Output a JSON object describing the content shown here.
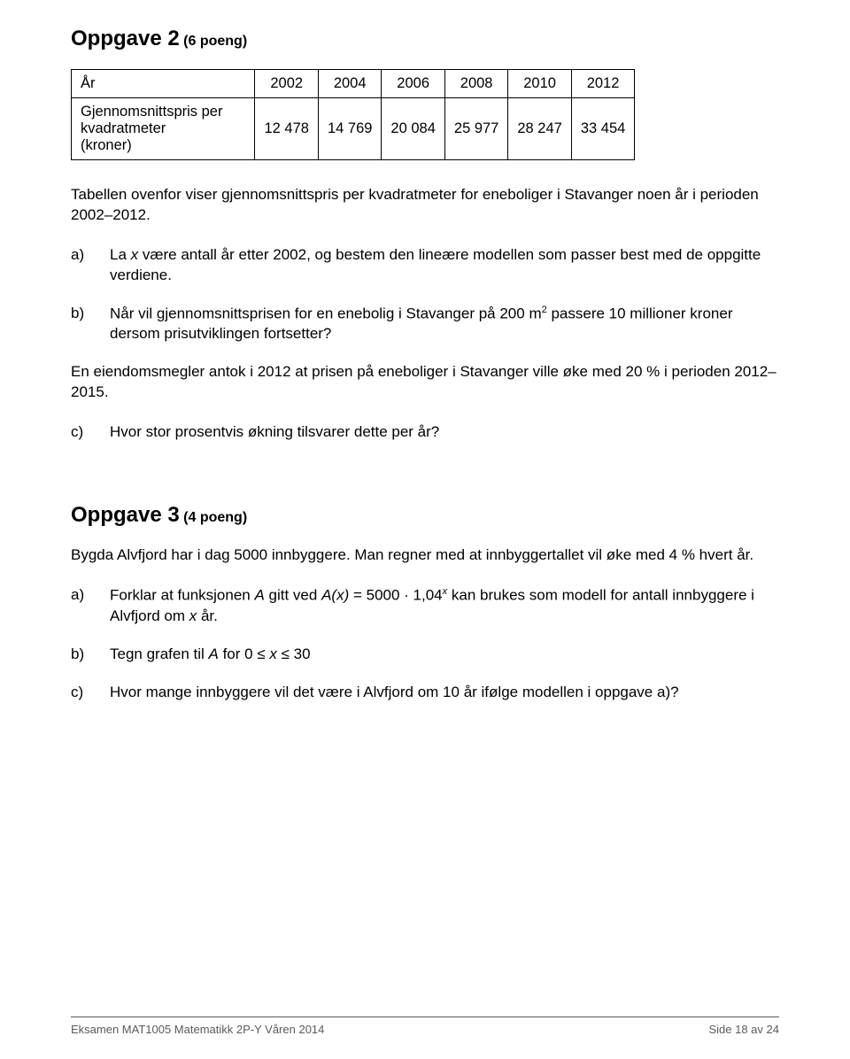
{
  "oppgave2": {
    "title_main": "Oppgave 2",
    "title_points": " (6 poeng)",
    "table": {
      "row1_label": "År",
      "years": [
        "2002",
        "2004",
        "2006",
        "2008",
        "2010",
        "2012"
      ],
      "row2_label": "Gjennomsnittspris per\nkvadratmeter\n(kroner)",
      "values": [
        "12 478",
        "14 769",
        "20 084",
        "25 977",
        "28 247",
        "33 454"
      ]
    },
    "intro": "Tabellen ovenfor viser gjennomsnittspris per kvadratmeter for eneboliger i Stavanger noen år i perioden 2002–2012.",
    "a_marker": "a)",
    "a_pre": "La ",
    "a_x": "x",
    "a_post": " være antall år etter 2002, og bestem den lineære modellen som passer best med de oppgitte verdiene.",
    "b_marker": "b)",
    "b_pre": "Når vil gjennomsnittsprisen for en enebolig i Stavanger på 200 m",
    "b_sup": "2",
    "b_post": " passere 10 millioner kroner dersom prisutviklingen fortsetter?",
    "mid": "En eiendomsmegler antok i 2012 at prisen på eneboliger i Stavanger ville øke med 20 % i perioden 2012–2015.",
    "c_marker": "c)",
    "c_text": "Hvor stor prosentvis økning tilsvarer dette per år?"
  },
  "oppgave3": {
    "title_main": "Oppgave 3",
    "title_points": " (4 poeng)",
    "intro": "Bygda Alvfjord har i dag 5000 innbyggere. Man regner med at innbyggertallet vil øke med 4 % hvert år.",
    "a_marker": "a)",
    "a_pre": "Forklar at funksjonen ",
    "a_A": "A",
    "a_mid1": " gitt ved ",
    "a_Ax": "A(x)",
    "a_eq": " = 5000 · 1,04",
    "a_sup": "x",
    "a_post": " kan brukes som modell for antall innbyggere i Alvfjord om ",
    "a_x": "x",
    "a_end": " år.",
    "b_marker": "b)",
    "b_pre": "Tegn grafen til ",
    "b_A": "A",
    "b_mid": " for 0 ≤ ",
    "b_x": "x",
    "b_post": " ≤ 30",
    "c_marker": "c)",
    "c_text": "Hvor mange innbyggere vil det være i Alvfjord om 10 år ifølge modellen i oppgave a)?"
  },
  "footer": {
    "left": "Eksamen MAT1005 Matematikk 2P-Y Våren 2014",
    "right": "Side 18 av 24"
  }
}
